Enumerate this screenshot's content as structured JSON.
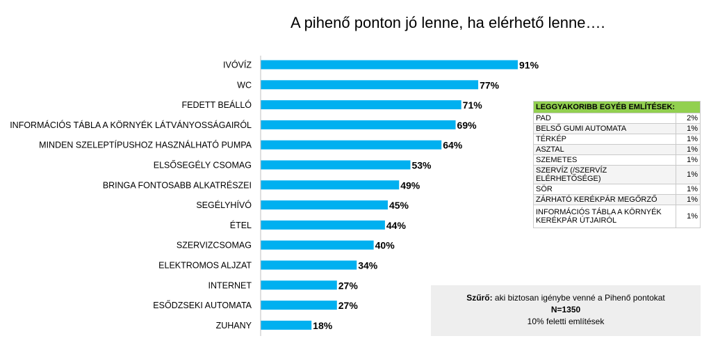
{
  "chart_data": {
    "type": "bar",
    "orientation": "horizontal",
    "title": "A pihenő ponton jó lenne, ha elérhető lenne….",
    "categories": [
      "IVÓVÍZ",
      "WC",
      "FEDETT BEÁLLÓ",
      "INFORMÁCIÓS TÁBLA A KÖRNYÉK LÁTVÁNYOSSÁGAIRÓL",
      "MINDEN SZELEPTÍPUSHOZ HASZNÁLHATÓ PUMPA",
      "ELSŐSEGÉLY CSOMAG",
      "BRINGA FONTOSABB ALKATRÉSZEI",
      "SEGÉLYHÍVÓ",
      "ÉTEL",
      "SZERVIZCSOMAG",
      "ELEKTROMOS ALJZAT",
      "INTERNET",
      "ESŐDZSEKI AUTOMATA",
      "ZUHANY"
    ],
    "values": [
      91,
      77,
      71,
      69,
      64,
      53,
      49,
      45,
      44,
      40,
      34,
      27,
      27,
      18
    ],
    "value_labels": [
      "91%",
      "77%",
      "71%",
      "69%",
      "64%",
      "53%",
      "49%",
      "45%",
      "44%",
      "40%",
      "34%",
      "27%",
      "27%",
      "18%"
    ],
    "xlim": [
      0,
      100
    ],
    "bar_color": "#00b0f0",
    "grid": false
  },
  "side_table": {
    "header": "LEGGYAKORIBB EGYÉB EMLÍTÉSEK:",
    "header_color": "#92d050",
    "rows": [
      {
        "label": "PAD",
        "value": "2%"
      },
      {
        "label": "BELSŐ GUMI AUTOMATA",
        "value": "1%"
      },
      {
        "label": "TÉRKÉP",
        "value": "1%"
      },
      {
        "label": "ASZTAL",
        "value": "1%"
      },
      {
        "label": "SZEMETES",
        "value": "1%"
      },
      {
        "label": "SZERVÍZ (/SZERVÍZ ELÉRHETŐSÉGE)",
        "value": "1%"
      },
      {
        "label": "SÖR",
        "value": "1%"
      },
      {
        "label": "ZÁRHATÓ KERÉKPÁR MEGŐRZŐ",
        "value": "1%"
      },
      {
        "label": "INFORMÁCIÓS TÁBLA A KÖRNYÉK KERÉKPÁR ÚTJAIRÓL",
        "value": "1%"
      }
    ]
  },
  "filter": {
    "prefix": "Szűrő:",
    "text": " aki biztosan igénybe venné a Pihenő pontokat",
    "n": "N=1350",
    "note": "10% feletti említések"
  }
}
